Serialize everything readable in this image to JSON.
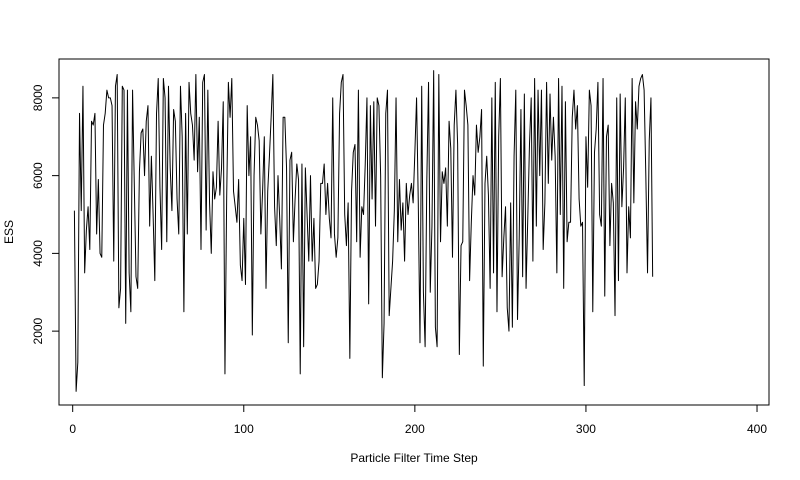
{
  "chart_data": {
    "type": "line",
    "title": "",
    "xlabel": "Particle Filter Time Step",
    "ylabel": "ESS",
    "xlim": [
      -8,
      407
    ],
    "ylim": [
      100,
      9000
    ],
    "x_ticks": [
      0,
      100,
      200,
      300,
      400
    ],
    "y_ticks": [
      2000,
      4000,
      6000,
      8000
    ],
    "grid": false,
    "legend": "none",
    "colors": {
      "line": "#000000",
      "frame": "#000000",
      "background": "#ffffff"
    },
    "series": [
      {
        "x_start": 1,
        "x_step": 1,
        "values": [
          5100,
          450,
          1200,
          7600,
          5100,
          8300,
          3500,
          4600,
          5200,
          4100,
          7400,
          7300,
          7600,
          4500,
          5900,
          4000,
          3900,
          7300,
          7600,
          8200,
          8000,
          8000,
          7800,
          3800,
          8300,
          8600,
          2600,
          3100,
          8300,
          8200,
          2200,
          8200,
          3500,
          2500,
          8200,
          5800,
          3400,
          3100,
          6100,
          7100,
          7200,
          6000,
          7400,
          7800,
          4700,
          6500,
          5000,
          3300,
          7600,
          8500,
          5700,
          4100,
          8500,
          8000,
          4300,
          8300,
          6200,
          5100,
          7700,
          7400,
          5400,
          4500,
          8300,
          7000,
          2500,
          7600,
          4500,
          8400,
          7600,
          7300,
          6400,
          8600,
          6100,
          7500,
          4100,
          8400,
          8600,
          4600,
          8200,
          5300,
          4000,
          6100,
          5400,
          5700,
          7400,
          5500,
          6200,
          7900,
          900,
          5400,
          8400,
          7500,
          8500,
          5600,
          5200,
          4800,
          5900,
          3700,
          3300,
          4900,
          3200,
          7800,
          6000,
          7000,
          1900,
          6000,
          7500,
          7300,
          6900,
          4500,
          5600,
          7000,
          3100,
          5600,
          6500,
          7500,
          8600,
          5200,
          4200,
          6000,
          4900,
          3600,
          7500,
          7500,
          6200,
          1700,
          6400,
          6600,
          4300,
          5400,
          6300,
          5900,
          900,
          6300,
          1600,
          6200,
          5000,
          3800,
          6000,
          3800,
          4900,
          3100,
          3200,
          3800,
          5800,
          5800,
          6300,
          5000,
          5800,
          4900,
          4400,
          8000,
          4500,
          3900,
          4400,
          7600,
          8400,
          8600,
          5000,
          4200,
          5300,
          1300,
          5600,
          6600,
          6800,
          4300,
          8200,
          3900,
          5200,
          5000,
          6300,
          8000,
          2700,
          7800,
          5400,
          7900,
          4700,
          8000,
          7800,
          6000,
          800,
          2200,
          7600,
          8200,
          2400,
          3100,
          3800,
          5100,
          8000,
          4300,
          5900,
          4600,
          5300,
          3800,
          5800,
          5000,
          5500,
          5800,
          5300,
          6600,
          8000,
          5300,
          1700,
          8300,
          3000,
          1600,
          5900,
          8400,
          3000,
          4700,
          8700,
          2100,
          1600,
          8600,
          4300,
          6100,
          5800,
          6200,
          4700,
          7400,
          6700,
          3900,
          7300,
          8200,
          6800,
          1400,
          4200,
          4300,
          8200,
          7800,
          7300,
          3300,
          4800,
          6000,
          5500,
          7300,
          6600,
          7000,
          7700,
          1100,
          5800,
          6500,
          5500,
          3100,
          8000,
          3500,
          8400,
          2500,
          7000,
          8500,
          3400,
          4400,
          5200,
          2600,
          2000,
          5300,
          2100,
          6500,
          8200,
          2300,
          4400,
          7700,
          3400,
          8100,
          3100,
          4900,
          6800,
          8000,
          3800,
          8500,
          4700,
          8200,
          6000,
          8200,
          4100,
          5300,
          8400,
          5800,
          8100,
          6400,
          7500,
          6500,
          3500,
          8500,
          5000,
          8300,
          3100,
          7900,
          4300,
          4800,
          4800,
          7500,
          8200,
          7200,
          7800,
          5400,
          4700,
          4800,
          600,
          7000,
          5700,
          8200,
          7800,
          2500,
          6600,
          7200,
          8400,
          5000,
          4700,
          8500,
          2900,
          7000,
          7300,
          4200,
          5800,
          5300,
          2400,
          8000,
          3300,
          8100,
          5200,
          6200,
          8000,
          3500,
          5200,
          4400,
          8500,
          5300,
          7900,
          7200,
          8300,
          8500,
          8600,
          8200,
          6000,
          3500,
          6900,
          8000,
          3400
        ]
      }
    ]
  }
}
